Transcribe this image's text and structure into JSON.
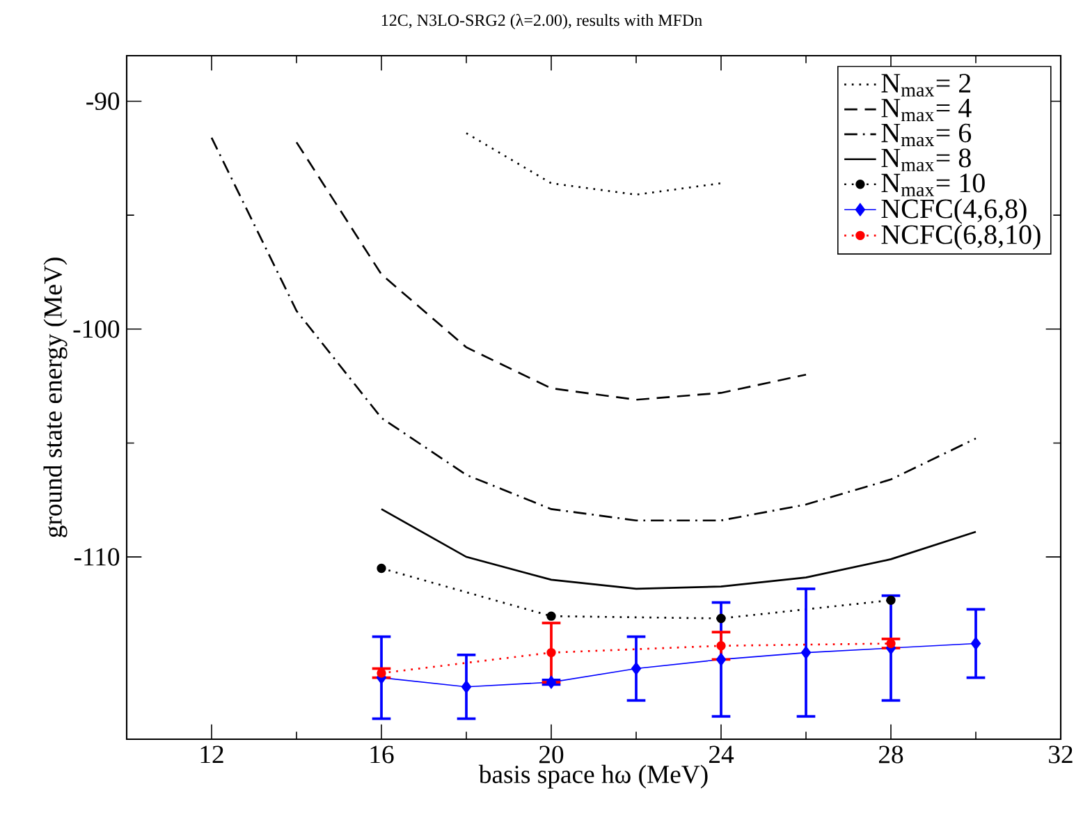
{
  "chart_data": {
    "type": "line",
    "title": "12C, N3LO-SRG2 (λ=2.00), results with MFDn",
    "xlabel": "basis space hω  (MeV)",
    "ylabel": "ground state energy  (MeV)",
    "xlim": [
      10,
      32
    ],
    "xticks": [
      12,
      16,
      20,
      24,
      28,
      32
    ],
    "ylim": [
      -118,
      -88
    ],
    "yticks": [
      -110,
      -100,
      -90
    ],
    "grid": false,
    "legend": "top right",
    "series": [
      {
        "name": "N$_{max}$= 2",
        "color": "#000000",
        "line_style": "dotted",
        "marker": "none",
        "x": [
          18,
          20,
          22,
          24
        ],
        "values": [
          -91.4,
          -93.6,
          -94.1,
          -93.6
        ]
      },
      {
        "name": "N$_{max}$= 4",
        "color": "#000000",
        "line_style": "dashed",
        "marker": "none",
        "x": [
          14,
          16,
          18,
          20,
          22,
          24,
          26
        ],
        "values": [
          -91.8,
          -97.6,
          -100.8,
          -102.6,
          -103.1,
          -102.8,
          -102.0
        ]
      },
      {
        "name": "N$_{max}$= 6",
        "color": "#000000",
        "line_style": "dashdot",
        "marker": "none",
        "x": [
          12,
          14,
          16,
          18,
          20,
          22,
          24,
          26,
          28,
          30
        ],
        "values": [
          -91.6,
          -99.2,
          -103.9,
          -106.4,
          -107.9,
          -108.4,
          -108.4,
          -107.7,
          -106.6,
          -104.8
        ]
      },
      {
        "name": "N$_{max}$= 8",
        "color": "#000000",
        "line_style": "solid",
        "marker": "none",
        "x": [
          16,
          18,
          20,
          22,
          24,
          26,
          28,
          30
        ],
        "values": [
          -107.9,
          -110.0,
          -111.0,
          -111.4,
          -111.3,
          -110.9,
          -110.1,
          -108.9
        ]
      },
      {
        "name": "N$_{max}$= 10",
        "color": "#000000",
        "line_style": "dotted",
        "marker": "circle",
        "x": [
          16,
          20,
          24,
          28
        ],
        "values": [
          -110.5,
          -112.6,
          -112.7,
          -111.9
        ]
      },
      {
        "name": "NCFC(4,6,8)",
        "color": "#0000ff",
        "line_style": "solid",
        "marker": "diamond",
        "x": [
          16,
          18,
          20,
          22,
          24,
          26,
          28,
          30
        ],
        "values": [
          -115.3,
          -115.7,
          -115.5,
          -114.9,
          -114.5,
          -114.2,
          -114.0,
          -113.8
        ],
        "errors": [
          1.8,
          1.4,
          0.1,
          1.4,
          2.5,
          2.8,
          2.3,
          1.5
        ]
      },
      {
        "name": "NCFC(6,8,10)",
        "color": "#ff0000",
        "line_style": "dotted",
        "marker": "circle",
        "x": [
          16,
          20,
          24,
          28
        ],
        "values": [
          -115.1,
          -114.2,
          -113.9,
          -113.8
        ],
        "errors": [
          0.2,
          1.3,
          0.6,
          0.2
        ]
      }
    ]
  }
}
